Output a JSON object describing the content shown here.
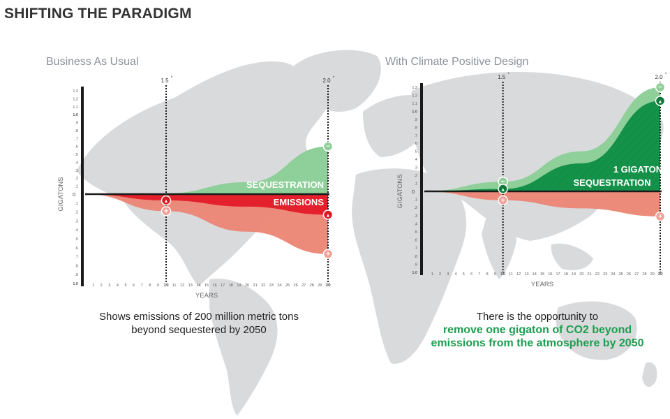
{
  "page": {
    "title": "SHIFTING THE PARADIGM",
    "colors": {
      "map": "#d9dadc",
      "axis": "#1a1a1a",
      "sequestration": "#5faa6f",
      "sequestration_light": "#8fcf99",
      "emissions": "#e3202b",
      "emissions_light": "#ec8574",
      "green_text": "#1d9e4f"
    }
  },
  "chart_data": [
    {
      "type": "area",
      "title": "Business As Usual",
      "xlabel": "YEARS",
      "ylabel": "GIGATONS",
      "x_ticks": [
        1,
        2,
        3,
        4,
        5,
        6,
        7,
        8,
        9,
        10,
        11,
        12,
        13,
        14,
        15,
        16,
        17,
        18,
        19,
        20,
        21,
        22,
        23,
        24,
        25,
        26,
        27,
        28,
        29,
        30
      ],
      "y_ticks_up": [
        ".1",
        ".2",
        ".3",
        ".4",
        ".5",
        ".6",
        ".7",
        ".8",
        ".9",
        "1.0",
        "1.1",
        "1.2",
        "1.3"
      ],
      "y_ticks_down": [
        ".1",
        ".2",
        ".3",
        ".4",
        ".5",
        ".6",
        ".7",
        ".8",
        ".9",
        "1.0"
      ],
      "y_zero": "0",
      "xlim": [
        0,
        30
      ],
      "ylim": [
        -1.0,
        1.3
      ],
      "markers": [
        {
          "x": 10,
          "label": "1.5",
          "sup": "*"
        },
        {
          "x": 30,
          "label": "2.0",
          "sup": "*"
        }
      ],
      "series": [
        {
          "name": "SEQUESTRATION",
          "kind": "up",
          "x": [
            0,
            10,
            20,
            30
          ],
          "y": [
            0,
            0.01,
            0.15,
            0.6
          ]
        },
        {
          "name": "EMISSIONS",
          "kind": "down",
          "x": [
            0,
            10,
            20,
            30
          ],
          "y": [
            0,
            -0.07,
            -0.14,
            -0.23
          ]
        },
        {
          "name": "",
          "kind": "down_light",
          "x": [
            0,
            10,
            20,
            30
          ],
          "y": [
            0,
            -0.19,
            -0.42,
            -0.67
          ]
        }
      ],
      "badges": [
        {
          "x": 30,
          "y": 0.6,
          "sign": "−",
          "style": "green_light"
        },
        {
          "x": 10,
          "y": -0.07,
          "sign": "▲",
          "style": "red"
        },
        {
          "x": 10,
          "y": -0.19,
          "sign": "+",
          "style": "pink"
        },
        {
          "x": 30,
          "y": -0.23,
          "sign": "▲",
          "style": "red"
        },
        {
          "x": 30,
          "y": -0.67,
          "sign": "+",
          "style": "pink"
        }
      ],
      "caption": [
        "Shows emissions of 200 million metric tons",
        "beyond sequestered by 2050"
      ]
    },
    {
      "type": "area",
      "title": "With Climate Positive Design",
      "xlabel": "YEARS",
      "ylabel": "GIGATONS",
      "x_ticks": [
        1,
        2,
        3,
        4,
        5,
        6,
        7,
        8,
        9,
        10,
        11,
        12,
        13,
        14,
        15,
        16,
        17,
        18,
        19,
        20,
        21,
        22,
        23,
        24,
        25,
        26,
        27,
        28,
        29,
        30
      ],
      "y_ticks_up": [
        ".1",
        ".2",
        ".3",
        ".4",
        ".5",
        ".6",
        ".7",
        ".8",
        ".9",
        "1.0",
        "1.1",
        "1.2",
        "1.3"
      ],
      "y_ticks_down": [
        ".1",
        ".2",
        ".3",
        ".4",
        ".5",
        ".6",
        ".7",
        ".8",
        ".9",
        "1.0"
      ],
      "y_zero": "0",
      "xlim": [
        0,
        30
      ],
      "ylim": [
        -1.0,
        1.3
      ],
      "markers": [
        {
          "x": 10,
          "label": "1.5",
          "sup": "*"
        },
        {
          "x": 30,
          "label": "2.0",
          "sup": "*"
        }
      ],
      "series": [
        {
          "name": "",
          "kind": "up_light",
          "x": [
            0,
            10,
            20,
            30
          ],
          "y": [
            0,
            0.12,
            0.5,
            1.3
          ]
        },
        {
          "name": "1 GIGATON SEQUESTRATION",
          "kind": "up",
          "x": [
            0,
            10,
            20,
            30
          ],
          "y": [
            0,
            0.03,
            0.35,
            1.13
          ]
        },
        {
          "name": "",
          "kind": "down_light",
          "x": [
            0,
            10,
            20,
            30
          ],
          "y": [
            0,
            -0.11,
            -0.21,
            -0.31
          ]
        }
      ],
      "badges": [
        {
          "x": 30,
          "y": 1.3,
          "sign": "−",
          "style": "green_light"
        },
        {
          "x": 30,
          "y": 1.13,
          "sign": "▲",
          "style": "green_dark"
        },
        {
          "x": 10,
          "y": 0.12,
          "sign": "−",
          "style": "green_light"
        },
        {
          "x": 10,
          "y": 0.03,
          "sign": "▲",
          "style": "green_dark"
        },
        {
          "x": 10,
          "y": -0.11,
          "sign": "+",
          "style": "pink"
        },
        {
          "x": 30,
          "y": -0.31,
          "sign": "+",
          "style": "pink"
        }
      ],
      "caption": [
        "There is the opportunity to",
        "remove one gigaton of CO2 beyond",
        "emissions from the atmosphere by 2050"
      ]
    }
  ]
}
